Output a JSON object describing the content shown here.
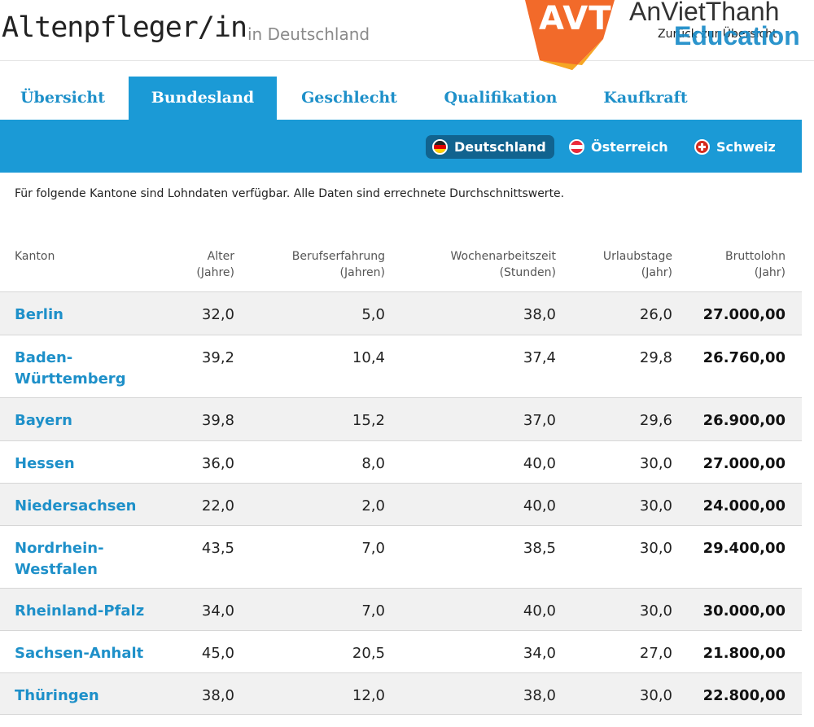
{
  "header": {
    "title": "Altenpfleger/in",
    "subtitle": "in Deutschland",
    "back_link": "Zurück zur Übersicht",
    "logo_text": "AVT",
    "brand_line1": "AnVietThanh",
    "brand_line2": "Education"
  },
  "tabs": [
    {
      "label": "Übersicht",
      "active": false
    },
    {
      "label": "Bundesland",
      "active": true
    },
    {
      "label": "Geschlecht",
      "active": false
    },
    {
      "label": "Qualifikation",
      "active": false
    },
    {
      "label": "Kaufkraft",
      "active": false
    }
  ],
  "countries": [
    {
      "label": "Deutschland",
      "active": true,
      "flag_colors": [
        "#222222",
        "#dd0000",
        "#ffce00"
      ]
    },
    {
      "label": "Österreich",
      "active": false,
      "flag_colors": [
        "#ed2939",
        "#ffffff",
        "#ed2939"
      ]
    },
    {
      "label": "Schweiz",
      "active": false,
      "flag_colors": [
        "#d52b1e",
        "#ffffff",
        "#d52b1e"
      ]
    }
  ],
  "note": "Für folgende Kantone sind Lohndaten verfügbar. Alle Daten sind errechnete Durchschnittswerte.",
  "table": {
    "columns": [
      {
        "line1": "Kanton",
        "line2": ""
      },
      {
        "line1": "Alter",
        "line2": "(Jahre)"
      },
      {
        "line1": "Berufserfahrung",
        "line2": "(Jahren)"
      },
      {
        "line1": "Wochenarbeitszeit",
        "line2": "(Stunden)"
      },
      {
        "line1": "Urlaubstage",
        "line2": "(Jahr)"
      },
      {
        "line1": "Bruttolohn",
        "line2": "(Jahr)"
      }
    ],
    "rows": [
      {
        "name": "Berlin",
        "alter": "32,0",
        "erfahrung": "5,0",
        "woche": "38,0",
        "urlaub": "26,0",
        "lohn": "27.000,00"
      },
      {
        "name": "Baden-Württemberg",
        "alter": "39,2",
        "erfahrung": "10,4",
        "woche": "37,4",
        "urlaub": "29,8",
        "lohn": "26.760,00"
      },
      {
        "name": "Bayern",
        "alter": "39,8",
        "erfahrung": "15,2",
        "woche": "37,0",
        "urlaub": "29,6",
        "lohn": "26.900,00"
      },
      {
        "name": "Hessen",
        "alter": "36,0",
        "erfahrung": "8,0",
        "woche": "40,0",
        "urlaub": "30,0",
        "lohn": "27.000,00"
      },
      {
        "name": "Niedersachsen",
        "alter": "22,0",
        "erfahrung": "2,0",
        "woche": "40,0",
        "urlaub": "30,0",
        "lohn": "24.000,00"
      },
      {
        "name": "Nordrhein-Westfalen",
        "alter": "43,5",
        "erfahrung": "7,0",
        "woche": "38,5",
        "urlaub": "30,0",
        "lohn": "29.400,00"
      },
      {
        "name": "Rheinland-Pfalz",
        "alter": "34,0",
        "erfahrung": "7,0",
        "woche": "40,0",
        "urlaub": "30,0",
        "lohn": "30.000,00"
      },
      {
        "name": "Sachsen-Anhalt",
        "alter": "45,0",
        "erfahrung": "20,5",
        "woche": "34,0",
        "urlaub": "27,0",
        "lohn": "21.800,00"
      },
      {
        "name": "Thüringen",
        "alter": "38,0",
        "erfahrung": "12,0",
        "woche": "38,0",
        "urlaub": "30,0",
        "lohn": "22.800,00"
      }
    ]
  },
  "colors": {
    "accent": "#1b9ad6",
    "accent_dark": "#11638f",
    "link": "#1e90c9",
    "logo_orange": "#f26a2a"
  }
}
